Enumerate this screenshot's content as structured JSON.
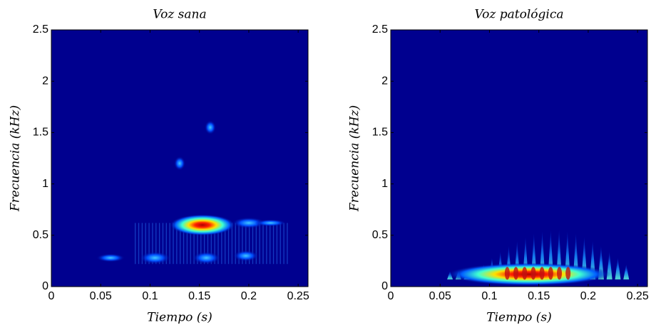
{
  "chart_data": [
    {
      "type": "heatmap",
      "title": "Voz sana",
      "x_label": "Tiempo (s)",
      "y_label": "Frecuencia  (kHz)",
      "xlim": [
        0,
        0.26
      ],
      "xticks": [
        0,
        0.05,
        0.1,
        0.15,
        0.2,
        0.25
      ],
      "ylim": [
        0,
        2.5
      ],
      "yticks": [
        0,
        0.5,
        1,
        1.5,
        2,
        2.5
      ],
      "color": "#00008f"
    },
    {
      "type": "heatmap",
      "title": "Voz patológica",
      "x_label": "Tiempo (s)",
      "y_label": "Frecuencia  (kHz)",
      "xlim": [
        0,
        0.26
      ],
      "xticks": [
        0,
        0.05,
        0.1,
        0.15,
        0.2,
        0.25
      ],
      "ylim": [
        0,
        2.5
      ],
      "yticks": [
        0,
        0.5,
        1,
        1.5,
        2,
        2.5
      ],
      "color": "#00008f"
    }
  ]
}
